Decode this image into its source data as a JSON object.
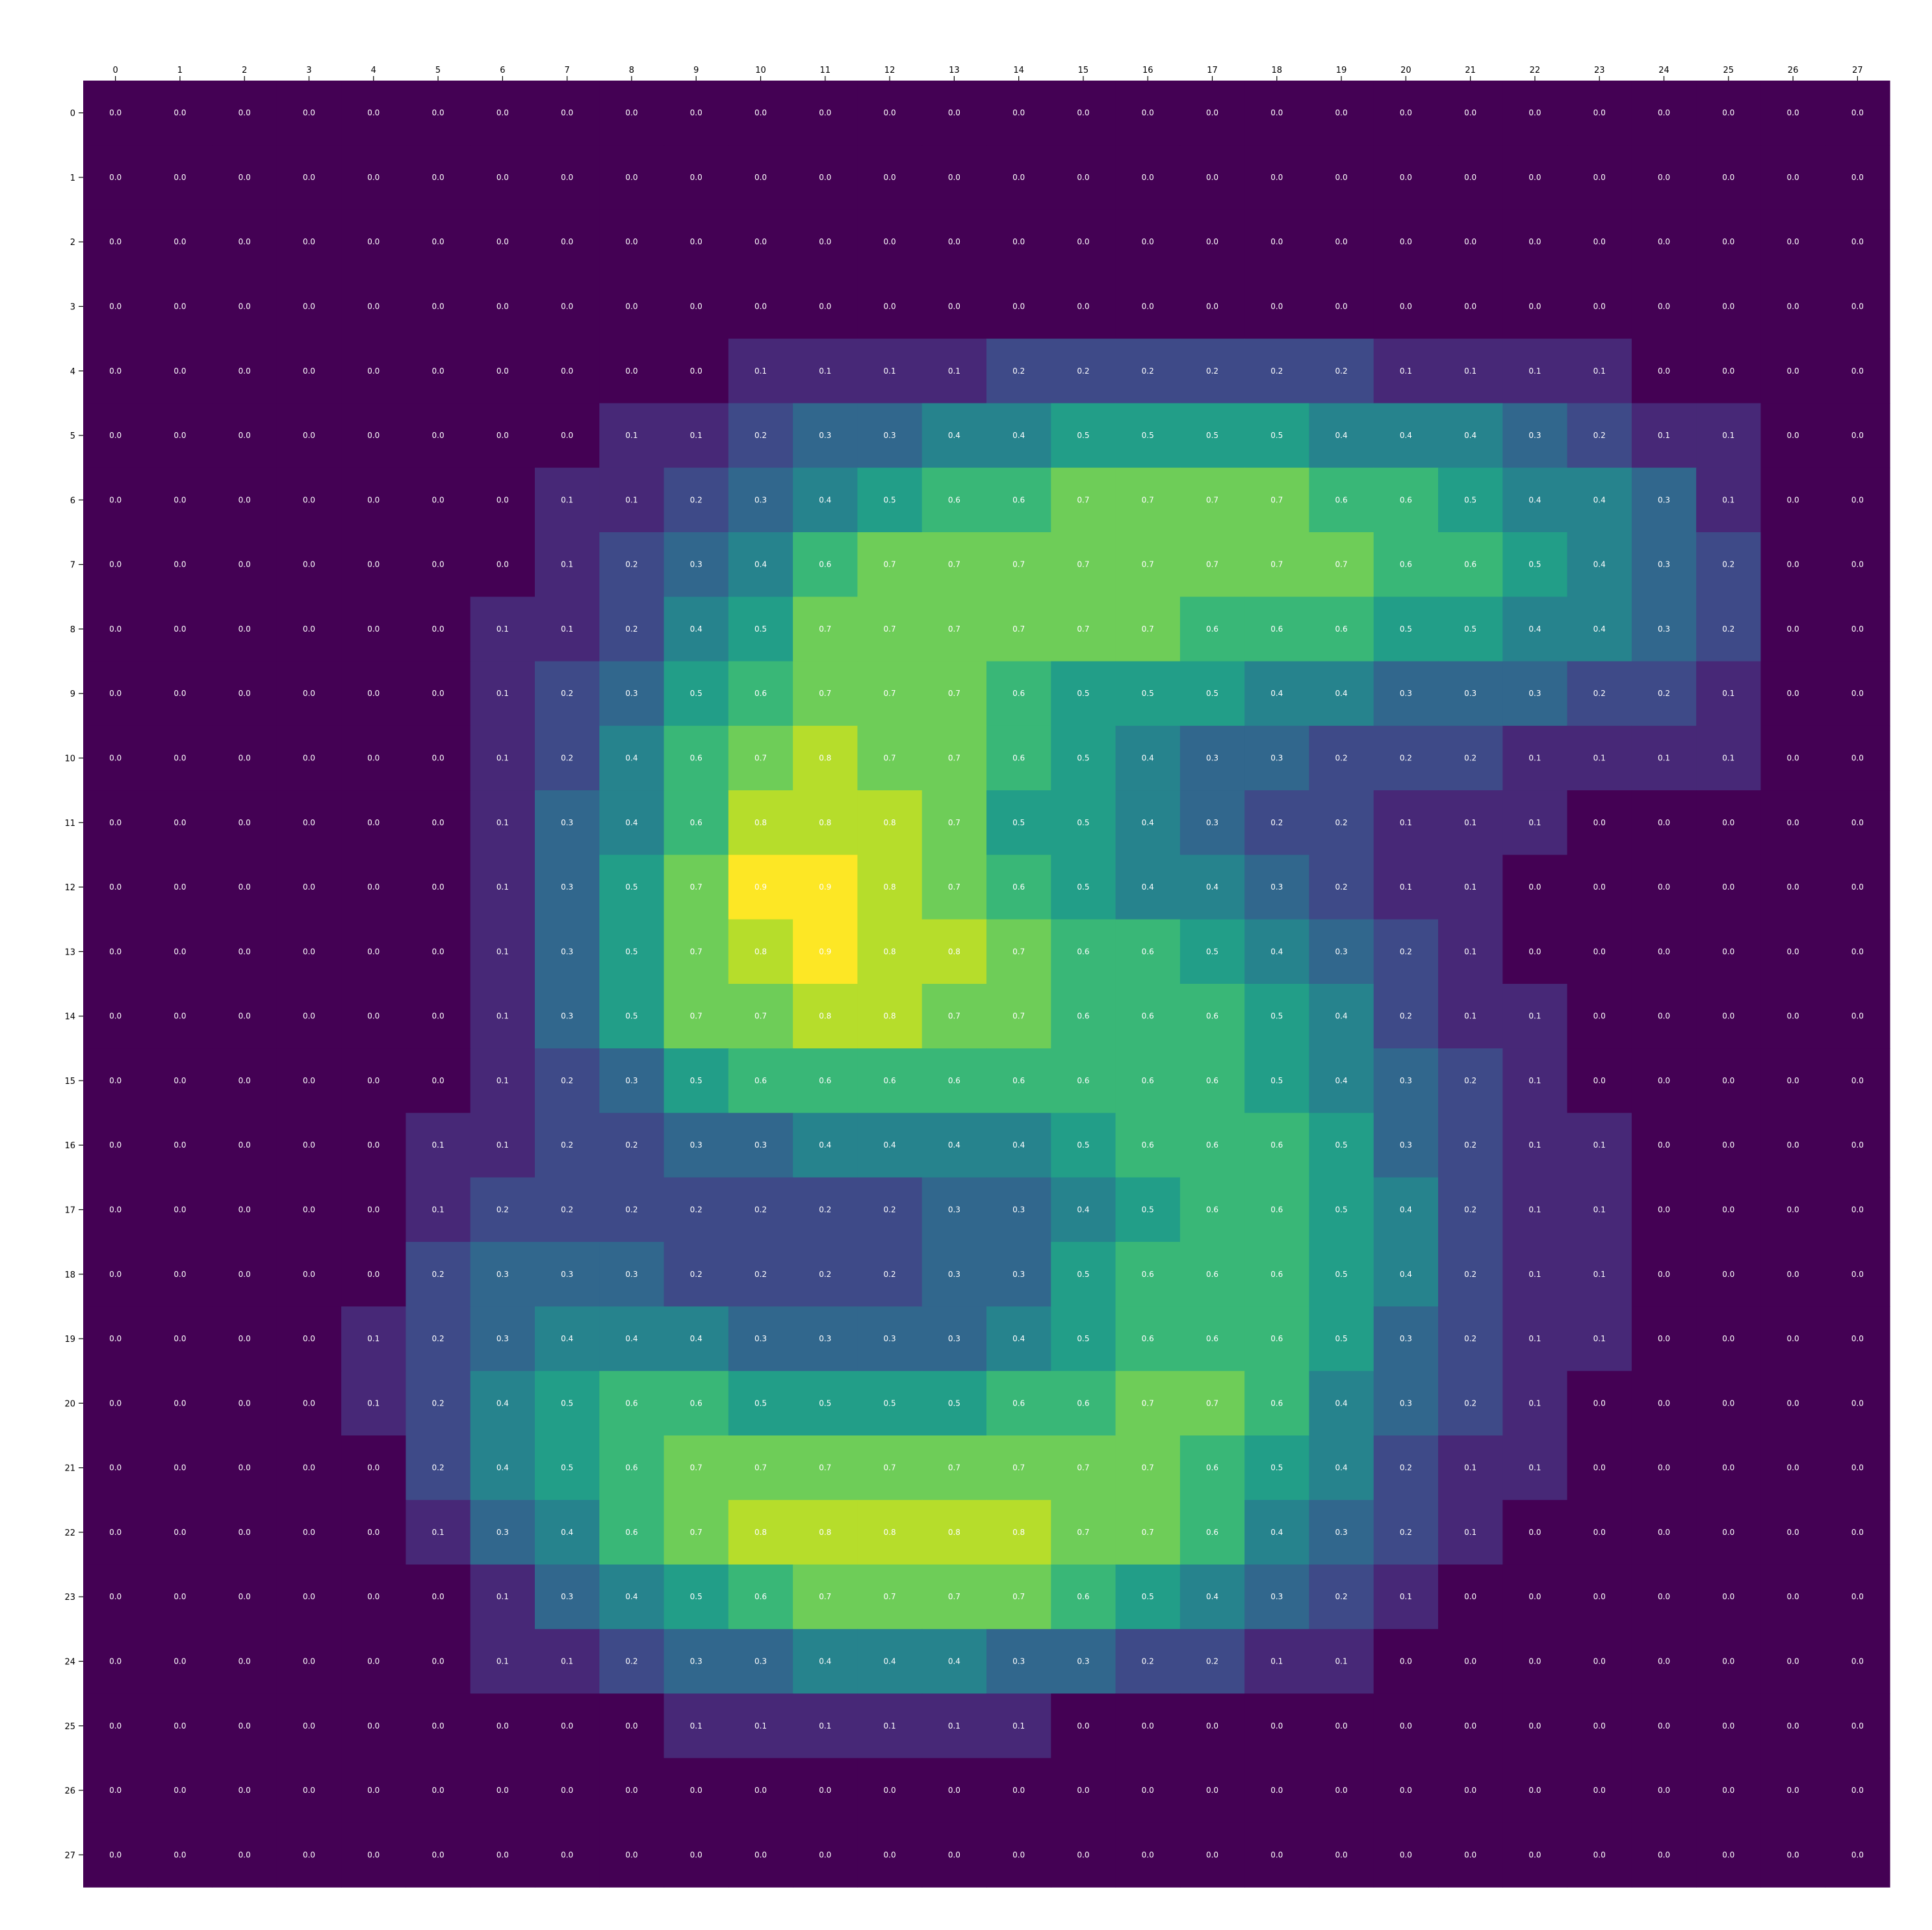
{
  "chart_data": {
    "type": "heatmap",
    "colormap": "viridis",
    "value_range": [
      0,
      0.9
    ],
    "x_ticks": [
      "0",
      "1",
      "2",
      "3",
      "4",
      "5",
      "6",
      "7",
      "8",
      "9",
      "10",
      "11",
      "12",
      "13",
      "14",
      "15",
      "16",
      "17",
      "18",
      "19",
      "20",
      "21",
      "22",
      "23",
      "24",
      "25",
      "26",
      "27"
    ],
    "y_ticks": [
      "0",
      "1",
      "2",
      "3",
      "4",
      "5",
      "6",
      "7",
      "8",
      "9",
      "10",
      "11",
      "12",
      "13",
      "14",
      "15",
      "16",
      "17",
      "18",
      "19",
      "20",
      "21",
      "22",
      "23",
      "24",
      "25",
      "26",
      "27"
    ],
    "x_axis_position": "top",
    "grid": false,
    "values": [
      [
        0,
        0,
        0,
        0,
        0,
        0,
        0,
        0,
        0,
        0,
        0,
        0,
        0,
        0,
        0,
        0,
        0,
        0,
        0,
        0,
        0,
        0,
        0,
        0,
        0,
        0,
        0,
        0
      ],
      [
        0,
        0,
        0,
        0,
        0,
        0,
        0,
        0,
        0,
        0,
        0,
        0,
        0,
        0,
        0,
        0,
        0,
        0,
        0,
        0,
        0,
        0,
        0,
        0,
        0,
        0,
        0,
        0
      ],
      [
        0,
        0,
        0,
        0,
        0,
        0,
        0,
        0,
        0,
        0,
        0,
        0,
        0,
        0,
        0,
        0,
        0,
        0,
        0,
        0,
        0,
        0,
        0,
        0,
        0,
        0,
        0,
        0
      ],
      [
        0,
        0,
        0,
        0,
        0,
        0,
        0,
        0,
        0,
        0,
        0,
        0,
        0,
        0,
        0,
        0,
        0,
        0,
        0,
        0,
        0,
        0,
        0,
        0,
        0,
        0,
        0,
        0
      ],
      [
        0,
        0,
        0,
        0,
        0,
        0,
        0,
        0,
        0,
        0,
        0.1,
        0.1,
        0.1,
        0.1,
        0.2,
        0.2,
        0.2,
        0.2,
        0.2,
        0.2,
        0.1,
        0.1,
        0.1,
        0.1,
        0,
        0,
        0,
        0
      ],
      [
        0,
        0,
        0,
        0,
        0,
        0,
        0,
        0,
        0.1,
        0.1,
        0.2,
        0.3,
        0.3,
        0.4,
        0.4,
        0.5,
        0.5,
        0.5,
        0.5,
        0.4,
        0.4,
        0.4,
        0.3,
        0.2,
        0.1,
        0.1,
        0,
        0
      ],
      [
        0,
        0,
        0,
        0,
        0,
        0,
        0,
        0.1,
        0.1,
        0.2,
        0.3,
        0.4,
        0.5,
        0.6,
        0.6,
        0.7,
        0.7,
        0.7,
        0.7,
        0.6,
        0.6,
        0.5,
        0.4,
        0.4,
        0.3,
        0.1,
        0,
        0
      ],
      [
        0,
        0,
        0,
        0,
        0,
        0,
        0,
        0.1,
        0.2,
        0.3,
        0.4,
        0.6,
        0.7,
        0.7,
        0.7,
        0.7,
        0.7,
        0.7,
        0.7,
        0.7,
        0.6,
        0.6,
        0.5,
        0.4,
        0.3,
        0.2,
        0,
        0
      ],
      [
        0,
        0,
        0,
        0,
        0,
        0,
        0.1,
        0.1,
        0.2,
        0.4,
        0.5,
        0.7,
        0.7,
        0.7,
        0.7,
        0.7,
        0.7,
        0.6,
        0.6,
        0.6,
        0.5,
        0.5,
        0.4,
        0.4,
        0.3,
        0.2,
        0,
        0
      ],
      [
        0,
        0,
        0,
        0,
        0,
        0,
        0.1,
        0.2,
        0.3,
        0.5,
        0.6,
        0.7,
        0.7,
        0.7,
        0.6,
        0.5,
        0.5,
        0.5,
        0.4,
        0.4,
        0.3,
        0.3,
        0.3,
        0.2,
        0.2,
        0.1,
        0,
        0
      ],
      [
        0,
        0,
        0,
        0,
        0,
        0,
        0.1,
        0.2,
        0.4,
        0.6,
        0.7,
        0.8,
        0.7,
        0.7,
        0.6,
        0.5,
        0.4,
        0.3,
        0.3,
        0.2,
        0.2,
        0.2,
        0.1,
        0.1,
        0.1,
        0.1,
        0,
        0
      ],
      [
        0,
        0,
        0,
        0,
        0,
        0,
        0.1,
        0.3,
        0.4,
        0.6,
        0.8,
        0.8,
        0.8,
        0.7,
        0.5,
        0.5,
        0.4,
        0.3,
        0.2,
        0.2,
        0.1,
        0.1,
        0.1,
        0,
        0,
        0,
        0,
        0
      ],
      [
        0,
        0,
        0,
        0,
        0,
        0,
        0.1,
        0.3,
        0.5,
        0.7,
        0.9,
        0.9,
        0.8,
        0.7,
        0.6,
        0.5,
        0.4,
        0.4,
        0.3,
        0.2,
        0.1,
        0.1,
        0,
        0,
        0,
        0,
        0,
        0
      ],
      [
        0,
        0,
        0,
        0,
        0,
        0,
        0.1,
        0.3,
        0.5,
        0.7,
        0.8,
        0.9,
        0.8,
        0.8,
        0.7,
        0.6,
        0.6,
        0.5,
        0.4,
        0.3,
        0.2,
        0.1,
        0,
        0,
        0,
        0,
        0,
        0
      ],
      [
        0,
        0,
        0,
        0,
        0,
        0,
        0.1,
        0.3,
        0.5,
        0.7,
        0.7,
        0.8,
        0.8,
        0.7,
        0.7,
        0.6,
        0.6,
        0.6,
        0.5,
        0.4,
        0.2,
        0.1,
        0.1,
        0,
        0,
        0,
        0,
        0
      ],
      [
        0,
        0,
        0,
        0,
        0,
        0,
        0.1,
        0.2,
        0.3,
        0.5,
        0.6,
        0.6,
        0.6,
        0.6,
        0.6,
        0.6,
        0.6,
        0.6,
        0.5,
        0.4,
        0.3,
        0.2,
        0.1,
        0,
        0,
        0,
        0,
        0
      ],
      [
        0,
        0,
        0,
        0,
        0,
        0.1,
        0.1,
        0.2,
        0.2,
        0.3,
        0.3,
        0.4,
        0.4,
        0.4,
        0.4,
        0.5,
        0.6,
        0.6,
        0.6,
        0.5,
        0.3,
        0.2,
        0.1,
        0.1,
        0,
        0,
        0,
        0
      ],
      [
        0,
        0,
        0,
        0,
        0,
        0.1,
        0.2,
        0.2,
        0.2,
        0.2,
        0.2,
        0.2,
        0.2,
        0.3,
        0.3,
        0.4,
        0.5,
        0.6,
        0.6,
        0.5,
        0.4,
        0.2,
        0.1,
        0.1,
        0,
        0,
        0,
        0
      ],
      [
        0,
        0,
        0,
        0,
        0,
        0.2,
        0.3,
        0.3,
        0.3,
        0.2,
        0.2,
        0.2,
        0.2,
        0.3,
        0.3,
        0.5,
        0.6,
        0.6,
        0.6,
        0.5,
        0.4,
        0.2,
        0.1,
        0.1,
        0,
        0,
        0,
        0
      ],
      [
        0,
        0,
        0,
        0,
        0.1,
        0.2,
        0.3,
        0.4,
        0.4,
        0.4,
        0.3,
        0.3,
        0.3,
        0.3,
        0.4,
        0.5,
        0.6,
        0.6,
        0.6,
        0.5,
        0.3,
        0.2,
        0.1,
        0.1,
        0,
        0,
        0,
        0
      ],
      [
        0,
        0,
        0,
        0,
        0.1,
        0.2,
        0.4,
        0.5,
        0.6,
        0.6,
        0.5,
        0.5,
        0.5,
        0.5,
        0.6,
        0.6,
        0.7,
        0.7,
        0.6,
        0.4,
        0.3,
        0.2,
        0.1,
        0,
        0,
        0,
        0,
        0
      ],
      [
        0,
        0,
        0,
        0,
        0,
        0.2,
        0.4,
        0.5,
        0.6,
        0.7,
        0.7,
        0.7,
        0.7,
        0.7,
        0.7,
        0.7,
        0.7,
        0.6,
        0.5,
        0.4,
        0.2,
        0.1,
        0.1,
        0,
        0,
        0,
        0,
        0
      ],
      [
        0,
        0,
        0,
        0,
        0,
        0.1,
        0.3,
        0.4,
        0.6,
        0.7,
        0.8,
        0.8,
        0.8,
        0.8,
        0.8,
        0.7,
        0.7,
        0.6,
        0.4,
        0.3,
        0.2,
        0.1,
        0,
        0,
        0,
        0,
        0,
        0
      ],
      [
        0,
        0,
        0,
        0,
        0,
        0,
        0.1,
        0.3,
        0.4,
        0.5,
        0.6,
        0.7,
        0.7,
        0.7,
        0.7,
        0.6,
        0.5,
        0.4,
        0.3,
        0.2,
        0.1,
        0,
        0,
        0,
        0,
        0,
        0,
        0
      ],
      [
        0,
        0,
        0,
        0,
        0,
        0,
        0.1,
        0.1,
        0.2,
        0.3,
        0.3,
        0.4,
        0.4,
        0.4,
        0.3,
        0.3,
        0.2,
        0.2,
        0.1,
        0.1,
        0,
        0,
        0,
        0,
        0,
        0,
        0,
        0
      ],
      [
        0,
        0,
        0,
        0,
        0,
        0,
        0,
        0,
        0,
        0.1,
        0.1,
        0.1,
        0.1,
        0.1,
        0.1,
        0,
        0,
        0,
        0,
        0,
        0,
        0,
        0,
        0,
        0,
        0,
        0,
        0
      ],
      [
        0,
        0,
        0,
        0,
        0,
        0,
        0,
        0,
        0,
        0,
        0,
        0,
        0,
        0,
        0,
        0,
        0,
        0,
        0,
        0,
        0,
        0,
        0,
        0,
        0,
        0,
        0,
        0
      ],
      [
        0,
        0,
        0,
        0,
        0,
        0,
        0,
        0,
        0,
        0,
        0,
        0,
        0,
        0,
        0,
        0,
        0,
        0,
        0,
        0,
        0,
        0,
        0,
        0,
        0,
        0,
        0,
        0
      ]
    ]
  }
}
